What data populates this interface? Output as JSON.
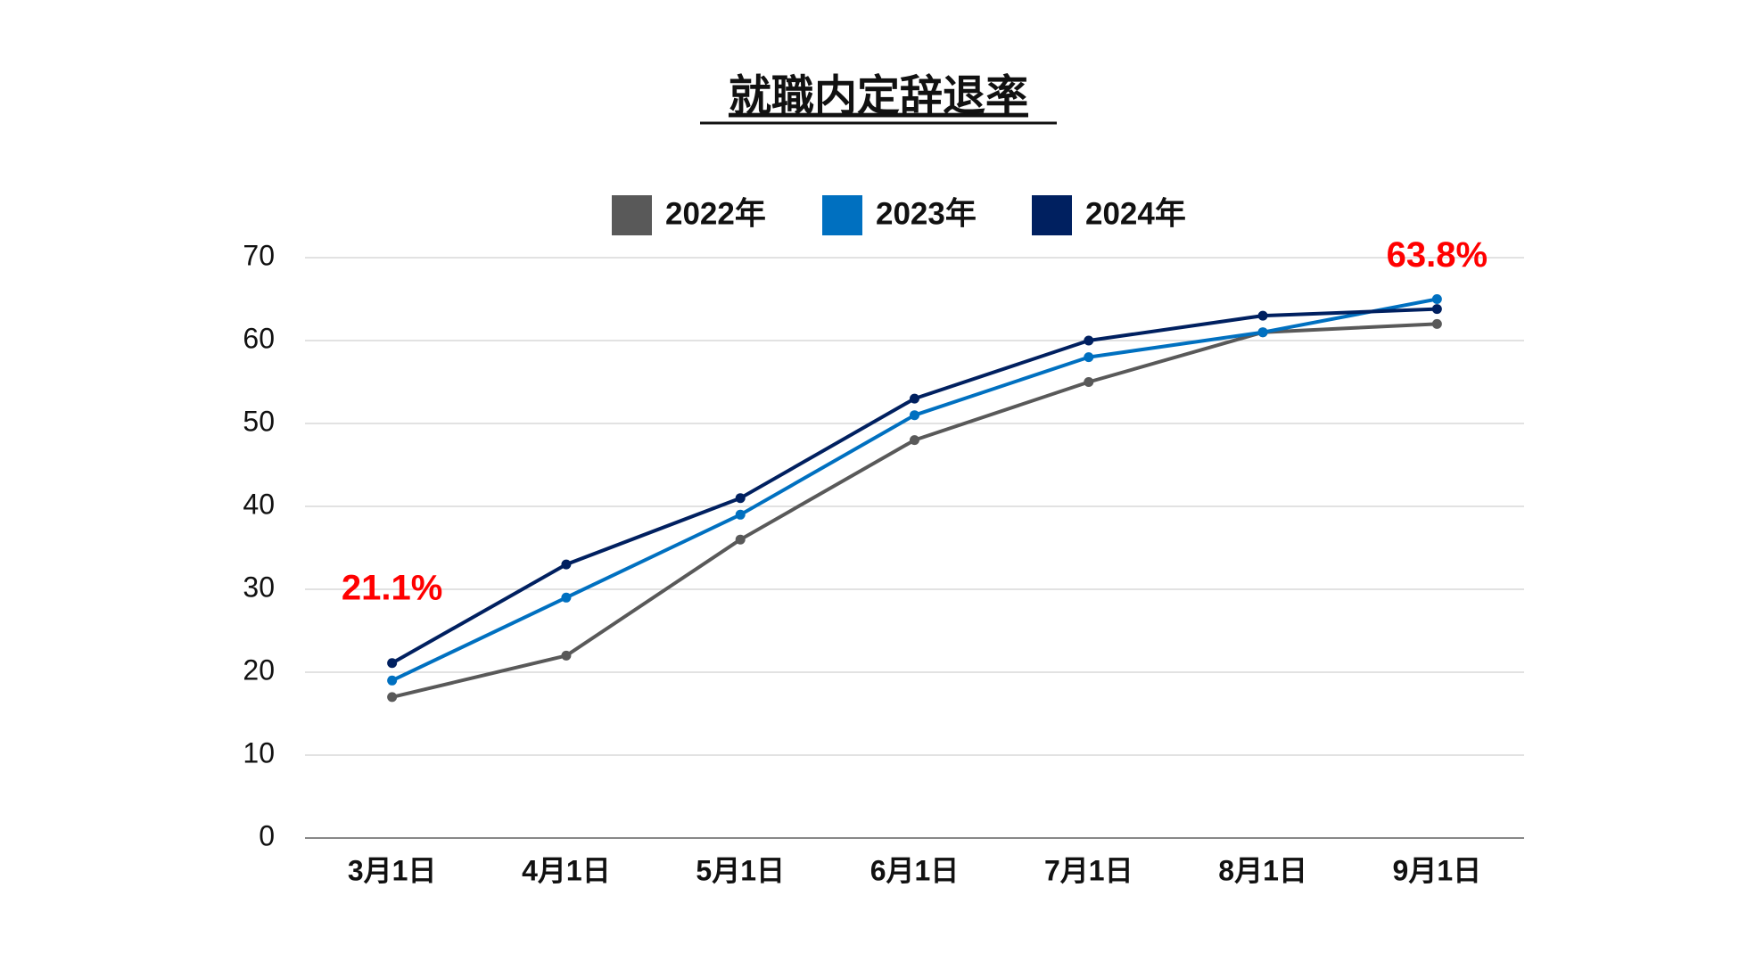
{
  "chart_data": {
    "type": "line",
    "title": "就職内定辞退率",
    "categories": [
      "3月1日",
      "4月1日",
      "5月1日",
      "6月1日",
      "7月1日",
      "8月1日",
      "9月1日"
    ],
    "series": [
      {
        "name": "2022年",
        "color": "#595959",
        "values": [
          17,
          22,
          36,
          48,
          55,
          61,
          62
        ]
      },
      {
        "name": "2023年",
        "color": "#0070c0",
        "values": [
          19,
          29,
          39,
          51,
          58,
          61,
          65
        ]
      },
      {
        "name": "2024年",
        "color": "#002060",
        "values": [
          21.1,
          33,
          41,
          53,
          60,
          63,
          63.8
        ],
        "value_labels": [
          "21.1%",
          null,
          null,
          null,
          null,
          null,
          "63.8%"
        ]
      }
    ],
    "ylim": [
      0,
      70
    ],
    "yticks": [
      0,
      10,
      20,
      30,
      40,
      50,
      60,
      70
    ],
    "grid": true,
    "legend": "top",
    "value_label_color": "#ff0000"
  }
}
